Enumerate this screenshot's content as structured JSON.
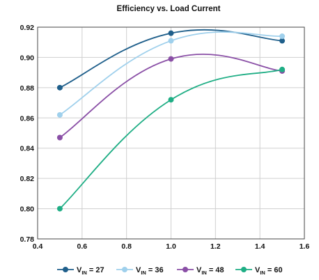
{
  "chart_data": {
    "type": "line",
    "title": "Efficiency vs. Load Current",
    "xlabel": "",
    "ylabel": "",
    "xlim": [
      0.4,
      1.6
    ],
    "ylim": [
      0.78,
      0.92
    ],
    "x_ticks": [
      "0.4",
      "0.6",
      "0.8",
      "1.0",
      "1.2",
      "1.4",
      "1.6"
    ],
    "y_ticks": [
      "0.78",
      "0.80",
      "0.82",
      "0.84",
      "0.86",
      "0.88",
      "0.90",
      "0.92"
    ],
    "grid": true,
    "legend_position": "bottom",
    "x": [
      0.5,
      1.0,
      1.5
    ],
    "series": [
      {
        "name": "V_IN = 27",
        "label_main": "V",
        "label_sub": "IN",
        "label_tail": " = 27",
        "color": "#1f5f8b",
        "values": [
          0.88,
          0.916,
          0.911
        ]
      },
      {
        "name": "V_IN = 36",
        "label_main": "V",
        "label_sub": "IN",
        "label_tail": " = 36",
        "color": "#9fd0ec",
        "values": [
          0.862,
          0.911,
          0.914
        ]
      },
      {
        "name": "V_IN = 48",
        "label_main": "V",
        "label_sub": "IN",
        "label_tail": " = 48",
        "color": "#8a4fa6",
        "values": [
          0.847,
          0.899,
          0.891
        ]
      },
      {
        "name": "V_IN = 60",
        "label_main": "V",
        "label_sub": "IN",
        "label_tail": " = 60",
        "color": "#1fae85",
        "values": [
          0.8,
          0.872,
          0.892
        ]
      }
    ]
  }
}
